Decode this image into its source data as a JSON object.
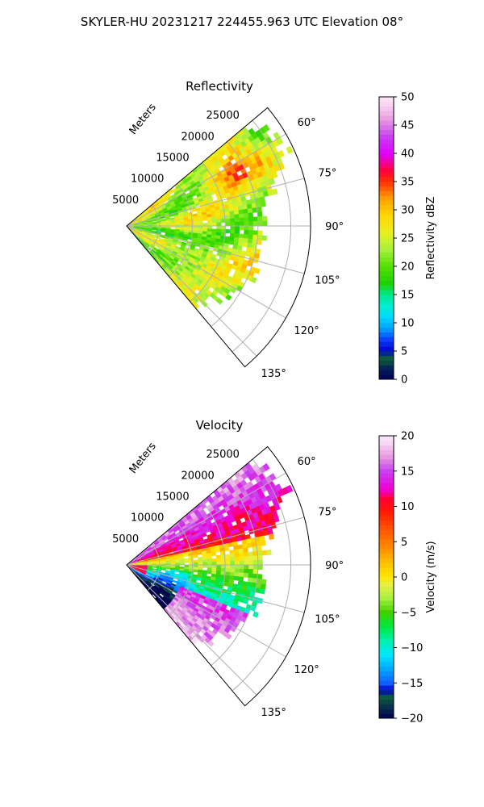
{
  "figure": {
    "suptitle": "SKYLER-HU  20231217  224455.963 UTC Elevation 08°"
  },
  "chart_data": [
    {
      "type": "heatmap",
      "projection": "polar-sector",
      "title": "Reflectivity",
      "radial_label": "Meters",
      "radial_ticks": [
        5000,
        10000,
        15000,
        20000,
        25000
      ],
      "radial_tick_labels": [
        "5000",
        "10000",
        "15000",
        "20000",
        "25000"
      ],
      "rmax": 28000,
      "azimuth_range_deg": [
        50,
        140
      ],
      "azimuth_ticks": [
        60,
        75,
        90,
        105,
        120,
        135
      ],
      "azimuth_tick_labels": [
        "60°",
        "75°",
        "90°",
        "105°",
        "120°",
        "135°"
      ],
      "grid": true,
      "colorbar": {
        "label": "Reflectivity dBZ",
        "vmin": 0,
        "vmax": 50,
        "ticks": [
          0,
          5,
          10,
          15,
          20,
          25,
          30,
          35,
          40,
          45,
          50
        ],
        "tick_labels": [
          "0",
          "5",
          "10",
          "15",
          "20",
          "25",
          "30",
          "35",
          "40",
          "45",
          "50"
        ]
      },
      "field_description": "Predominantly 20–30 dBZ; maximum ~35–40 dBZ near azimuth 60–70° at 15000–25000 m; weaker 12–18 dBZ band near azimuth 90–110° at 2000–10000 m."
    },
    {
      "type": "heatmap",
      "projection": "polar-sector",
      "title": "Velocity",
      "radial_label": "Meters",
      "radial_ticks": [
        5000,
        10000,
        15000,
        20000,
        25000
      ],
      "radial_tick_labels": [
        "5000",
        "10000",
        "15000",
        "20000",
        "25000"
      ],
      "rmax": 28000,
      "azimuth_range_deg": [
        50,
        140
      ],
      "azimuth_ticks": [
        60,
        75,
        90,
        105,
        120,
        135
      ],
      "azimuth_tick_labels": [
        "60°",
        "75°",
        "90°",
        "105°",
        "120°",
        "135°"
      ],
      "grid": true,
      "colorbar": {
        "label": "Velocity (m/s)",
        "vmin": -20,
        "vmax": 20,
        "ticks": [
          -20,
          -15,
          -10,
          -5,
          0,
          5,
          10,
          15,
          20
        ],
        "tick_labels": [
          "−20",
          "−15",
          "−10",
          "−5",
          "0",
          "5",
          "10",
          "15",
          "20"
        ]
      },
      "field_description": "Outbound +8 to +15 m/s at azimuth 55–75°; near 0 to +3 m/s at 80–100°; inbound −8 to −12 m/s in an arc around azimuth 100–120°; folded +12 to +18 m/s near azimuth 115–135° beyond 10000 m."
    }
  ]
}
